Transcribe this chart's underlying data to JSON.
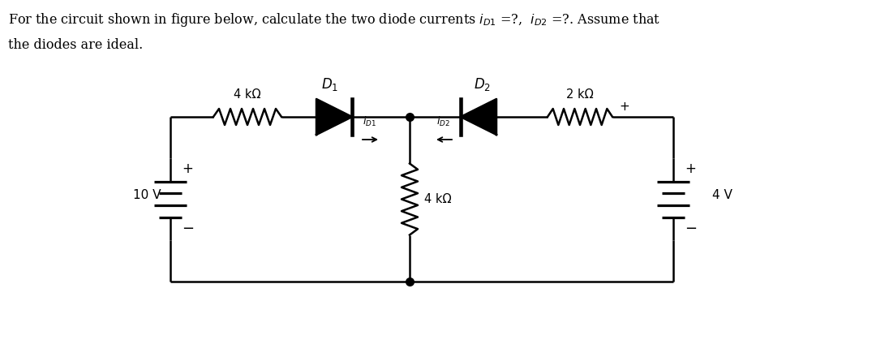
{
  "title_line1": "For the circuit shown in figure below, calculate the two diode currents $i_{D1}$ =?,  $i_{D2}$ =?. Assume that",
  "title_line2": "the diodes are ideal.",
  "bg_color": "#ffffff",
  "wire_color": "#000000",
  "text_color": "#000000",
  "fig_width": 10.75,
  "fig_height": 4.19,
  "dpi": 100,
  "left_voltage": "10 V",
  "resistor1_label": "4 kΩ",
  "resistor_mid_label": "4 kΩ",
  "resistor3_label": "2 kΩ",
  "diode1_label": "$D_1$",
  "diode2_label": "$D_2$",
  "right_voltage": "4 V",
  "id1_label": "$i_{D1}$",
  "id2_label": "$i_{D2}$",
  "plus": "+",
  "minus": "−"
}
